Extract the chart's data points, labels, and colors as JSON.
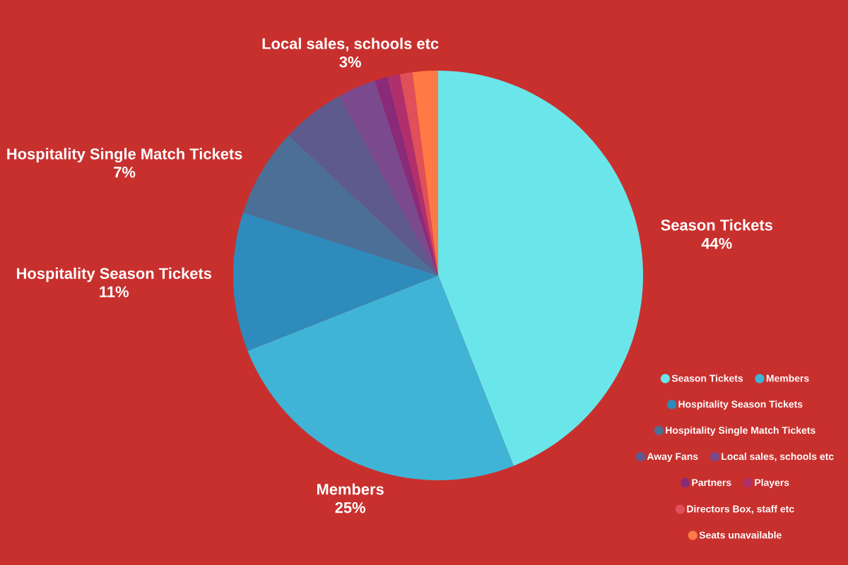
{
  "chart_data": {
    "type": "pie",
    "categories": [
      "Season Tickets",
      "Members",
      "Hospitality Season Tickets",
      "Hospitality Single Match Tickets",
      "Away Fans",
      "Local sales, schools etc",
      "Partners",
      "Players",
      "Directors Box, staff etc",
      "Seats unavailable"
    ],
    "values": [
      44,
      25,
      11,
      7,
      5,
      3,
      1,
      1,
      1,
      2
    ],
    "colors": [
      "#6ae6ea",
      "#3fb4d6",
      "#2e8bbc",
      "#4c6f98",
      "#5e5a8e",
      "#7b4a8e",
      "#8a2a7a",
      "#b0306e",
      "#e0505a",
      "#ff7a45"
    ],
    "value_labels": [
      "44%",
      "25%",
      "11%",
      "7%",
      null,
      "3%",
      null,
      null,
      null,
      null
    ],
    "legend": "bottom right"
  }
}
